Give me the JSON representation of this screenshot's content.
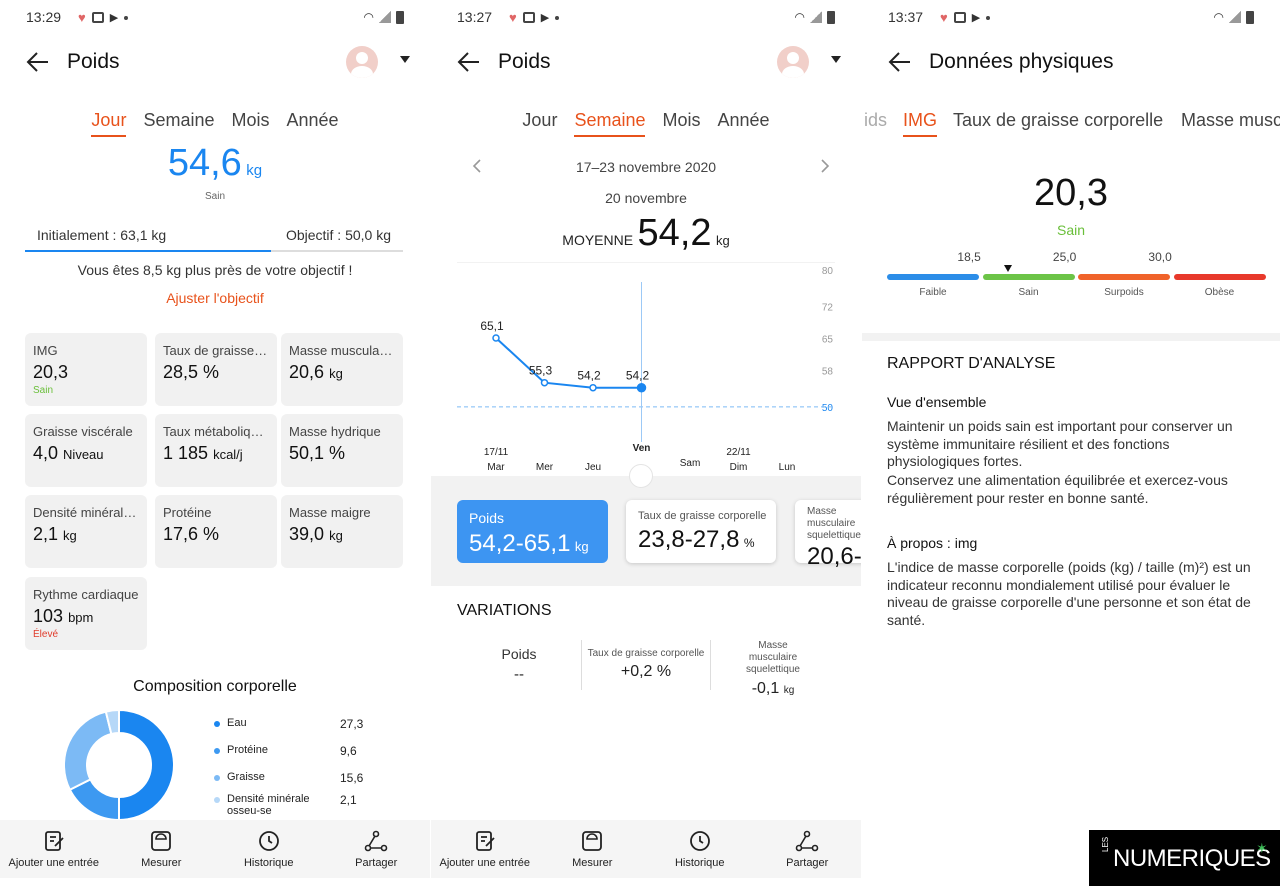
{
  "panel1": {
    "status_time": "13:29",
    "title": "Poids",
    "tabs": [
      "Jour",
      "Semaine",
      "Mois",
      "Année"
    ],
    "weight_value": "54,6",
    "weight_unit": "kg",
    "weight_status": "Sain",
    "initial_label": "Initialement : 63,1 kg",
    "goal_label": "Objectif : 50,0 kg",
    "progress_fraction": 0.65,
    "goal_message": "Vous êtes 8,5 kg plus près de votre objectif !",
    "adjust_goal": "Ajuster l'objectif",
    "tiles": [
      {
        "label": "IMG",
        "value": "20,3",
        "unit": "",
        "status": "Sain",
        "status_color": "#6abf3a"
      },
      {
        "label": "Taux de graisse …",
        "value": "28,5 %",
        "unit": "",
        "status": "",
        "status_color": ""
      },
      {
        "label": "Masse musculair…",
        "value": "20,6",
        "unit": "kg",
        "status": "",
        "status_color": ""
      },
      {
        "label": "Graisse viscérale",
        "value": "4,0",
        "unit": "Niveau",
        "status": "",
        "status_color": ""
      },
      {
        "label": "Taux métabolique…",
        "value": "1 185",
        "unit": "kcal/j",
        "status": "",
        "status_color": ""
      },
      {
        "label": "Masse hydrique",
        "value": "50,1 %",
        "unit": "",
        "status": "",
        "status_color": ""
      },
      {
        "label": "Densité minérale …",
        "value": "2,1",
        "unit": "kg",
        "status": "",
        "status_color": ""
      },
      {
        "label": "Protéine",
        "value": "17,6 %",
        "unit": "",
        "status": "",
        "status_color": ""
      },
      {
        "label": "Masse maigre",
        "value": "39,0",
        "unit": "kg",
        "status": "",
        "status_color": ""
      },
      {
        "label": "Rythme cardiaque",
        "value": "103",
        "unit": "bpm",
        "status": "Élevé",
        "status_color": "#e03b2b"
      }
    ],
    "composition_title": "Composition corporelle",
    "composition": [
      {
        "name": "Eau",
        "value": "27,3",
        "color": "#1a86f0"
      },
      {
        "name": "Protéine",
        "value": "9,6",
        "color": "#3d99f1"
      },
      {
        "name": "Graisse",
        "value": "15,6",
        "color": "#7cbaf5"
      },
      {
        "name": "Densité minérale osseu-se",
        "value": "2,1",
        "color": "#b6d8f8"
      }
    ],
    "nav": [
      "Ajouter une entrée",
      "Mesurer",
      "Historique",
      "Partager"
    ]
  },
  "panel2": {
    "status_time": "13:27",
    "title": "Poids",
    "tabs": [
      "Jour",
      "Semaine",
      "Mois",
      "Année"
    ],
    "date_range": "17–23 novembre 2020",
    "selected_date": "20 novembre",
    "avg_label": "MOYENNE",
    "avg_value": "54,2",
    "avg_unit": "kg",
    "days": [
      "Mar",
      "Mer",
      "Jeu",
      "Ven",
      "Sam",
      "Dim",
      "Lun"
    ],
    "day_dates": [
      "17/11",
      "",
      "",
      "",
      "",
      "22/11",
      ""
    ],
    "cards": [
      {
        "label": "Poids",
        "value": "54,2-65,1",
        "unit": "kg"
      },
      {
        "label": "Taux de graisse corporelle",
        "value": "23,8-27,8",
        "unit": "%"
      },
      {
        "label": "Masse musculaire squelettique",
        "value": "20,6-",
        "unit": ""
      }
    ],
    "variations_title": "VARIATIONS",
    "variations": [
      {
        "label": "Poids",
        "value": "--",
        "unit": ""
      },
      {
        "label": "Taux de graisse corporelle",
        "value": "+0,2 %",
        "unit": ""
      },
      {
        "label": "Masse musculaire squelettique",
        "value": "-0,1",
        "unit": "kg"
      }
    ],
    "nav": [
      "Ajouter une entrée",
      "Mesurer",
      "Historique",
      "Partager"
    ]
  },
  "panel3": {
    "status_time": "13:37",
    "title": "Données physiques",
    "tabs": [
      "ids",
      "IMG",
      "Taux de graisse corporelle",
      "Masse musc"
    ],
    "bmi_value": "20,3",
    "bmi_status": "Sain",
    "scale_ticks": [
      "18,5",
      "25,0",
      "30,0"
    ],
    "scale_pointer_value": 20.3,
    "scale_segments": [
      {
        "name": "Faible",
        "color": "#2b8de8"
      },
      {
        "name": "Sain",
        "color": "#6cc447"
      },
      {
        "name": "Surpoids",
        "color": "#f0632a"
      },
      {
        "name": "Obèse",
        "color": "#e8392b"
      }
    ],
    "report_title": "RAPPORT D'ANALYSE",
    "overview_title": "Vue d'ensemble",
    "overview_text1": "Maintenir un poids sain est important pour conserver un système immunitaire résilient et des fonctions physiologiques fortes.",
    "overview_text2": "Conservez une alimentation équilibrée et exercez-vous régulièrement pour rester en bonne santé.",
    "about_title": "À propos : img",
    "about_text": "L'indice de masse corporelle (poids (kg) / taille (m)²) est un indicateur reconnu mondialement utilisé pour évaluer le niveau de graisse corporelle d'une personne et son état de santé."
  },
  "watermark": {
    "prefix": "LES",
    "brand": "NUMERIQUES"
  },
  "chart_data": {
    "type": "line",
    "categories": [
      "Mar",
      "Mer",
      "Jeu",
      "Ven",
      "Sam",
      "Dim",
      "Lun"
    ],
    "series": [
      {
        "values": [
          65.1,
          55.3,
          54.2,
          54.2,
          null,
          null,
          null
        ]
      }
    ],
    "data_labels": [
      "65,1",
      "55,3",
      "54,2",
      "54,2"
    ],
    "target_line": 50,
    "y_ticks": [
      80,
      72,
      65,
      58,
      50
    ],
    "ylim": [
      48,
      80
    ],
    "grid": false,
    "highlight": "Ven"
  },
  "colors": {
    "accent_orange": "#e8521b",
    "accent_blue": "#1a86f0",
    "healthy_green": "#6abf3a"
  }
}
